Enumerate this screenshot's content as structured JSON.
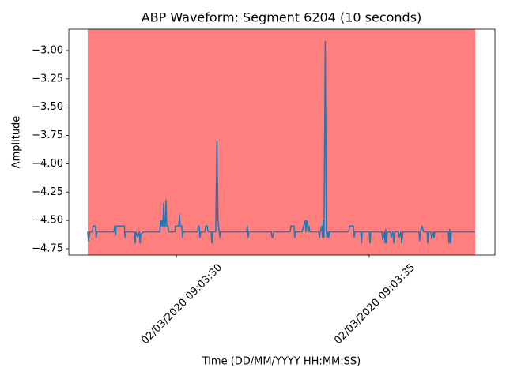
{
  "chart_data": {
    "type": "line",
    "title": "ABP Waveform: Segment 6204 (10 seconds)",
    "x_label": "Time (DD/MM/YYYY HH:MM:SS)",
    "y_label": "Amplitude",
    "color": "#1f77b4",
    "span": {
      "x": [
        "2020-03-02T09:03:27.70",
        "2020-03-02T09:03:37.75"
      ],
      "color": "#ff0000",
      "opacity": 0.5
    },
    "xlim": [
      "2020-03-02T09:03:27.21",
      "2020-03-02T09:03:38.26"
    ],
    "xticks": [
      {
        "value": "2020-03-02T09:03:30",
        "label": "02/03/2020 09:03:30"
      },
      {
        "value": "2020-03-02T09:03:35",
        "label": "02/03/2020 09:03:35"
      }
    ],
    "ylim": [
      -4.806,
      -2.812
    ],
    "yticks": [
      {
        "value": -4.75,
        "label": "−4.75"
      },
      {
        "value": -4.5,
        "label": "−4.50"
      },
      {
        "value": -4.25,
        "label": "−4.25"
      },
      {
        "value": -4,
        "label": "−4.00"
      },
      {
        "value": -3.75,
        "label": "−3.75"
      },
      {
        "value": -3.5,
        "label": "−3.50"
      },
      {
        "value": -3.25,
        "label": "−3.25"
      },
      {
        "value": -3,
        "label": "−3.00"
      }
    ],
    "x": [
      "2020-03-02T09:03:27.70",
      "2020-03-02T09:03:27.72",
      "2020-03-02T09:03:27.76",
      "2020-03-02T09:03:27.82",
      "2020-03-02T09:03:27.84",
      "2020-03-02T09:03:27.90",
      "2020-03-02T09:03:27.92",
      "2020-03-02T09:03:27.94",
      "2020-03-02T09:03:28.38",
      "2020-03-02T09:03:28.40",
      "2020-03-02T09:03:28.42",
      "2020-03-02T09:03:28.44",
      "2020-03-02T09:03:28.65",
      "2020-03-02T09:03:28.67",
      "2020-03-02T09:03:28.69",
      "2020-03-02T09:03:28.91",
      "2020-03-02T09:03:28.93",
      "2020-03-02T09:03:28.95",
      "2020-03-02T09:03:29.00",
      "2020-03-02T09:03:29.04",
      "2020-03-02T09:03:29.06",
      "2020-03-02T09:03:29.08",
      "2020-03-02T09:03:29.16",
      "2020-03-02T09:03:29.57",
      "2020-03-02T09:03:29.59",
      "2020-03-02T09:03:29.61",
      "2020-03-02T09:03:29.63",
      "2020-03-02T09:03:29.65",
      "2020-03-02T09:03:29.67",
      "2020-03-02T09:03:29.69",
      "2020-03-02T09:03:29.71",
      "2020-03-02T09:03:29.73",
      "2020-03-02T09:03:29.75",
      "2020-03-02T09:03:29.78",
      "2020-03-02T09:03:29.80",
      "2020-03-02T09:03:29.96",
      "2020-03-02T09:03:29.98",
      "2020-03-02T09:03:30.06",
      "2020-03-02T09:03:30.08",
      "2020-03-02T09:03:30.10",
      "2020-03-02T09:03:30.14",
      "2020-03-02T09:03:30.16",
      "2020-03-02T09:03:30.18",
      "2020-03-02T09:03:30.55",
      "2020-03-02T09:03:30.57",
      "2020-03-02T09:03:30.59",
      "2020-03-02T09:03:30.61",
      "2020-03-02T09:03:30.63",
      "2020-03-02T09:03:30.74",
      "2020-03-02T09:03:30.76",
      "2020-03-02T09:03:30.80",
      "2020-03-02T09:03:30.82",
      "2020-03-02T09:03:30.90",
      "2020-03-02T09:03:30.92",
      "2020-03-02T09:03:30.94",
      "2020-03-02T09:03:31.02",
      "2020-03-02T09:03:31.05",
      "2020-03-02T09:03:31.08",
      "2020-03-02T09:03:31.11",
      "2020-03-02T09:03:31.13",
      "2020-03-02T09:03:31.15",
      "2020-03-02T09:03:31.82",
      "2020-03-02T09:03:31.84",
      "2020-03-02T09:03:31.86",
      "2020-03-02T09:03:31.88",
      "2020-03-02T09:03:32.46",
      "2020-03-02T09:03:32.48",
      "2020-03-02T09:03:32.50",
      "2020-03-02T09:03:32.52",
      "2020-03-02T09:03:32.95",
      "2020-03-02T09:03:32.97",
      "2020-03-02T09:03:33.05",
      "2020-03-02T09:03:33.07",
      "2020-03-02T09:03:33.09",
      "2020-03-02T09:03:33.26",
      "2020-03-02T09:03:33.30",
      "2020-03-02T09:03:33.34",
      "2020-03-02T09:03:33.36",
      "2020-03-02T09:03:33.38",
      "2020-03-02T09:03:33.40",
      "2020-03-02T09:03:33.42",
      "2020-03-02T09:03:33.44",
      "2020-03-02T09:03:33.46",
      "2020-03-02T09:03:33.69",
      "2020-03-02T09:03:33.71",
      "2020-03-02T09:03:33.73",
      "2020-03-02T09:03:33.77",
      "2020-03-02T09:03:33.79",
      "2020-03-02T09:03:33.81",
      "2020-03-02T09:03:33.83",
      "2020-03-02T09:03:33.86",
      "2020-03-02T09:03:33.89",
      "2020-03-02T09:03:33.91",
      "2020-03-02T09:03:33.93",
      "2020-03-02T09:03:33.95",
      "2020-03-02T09:03:33.97",
      "2020-03-02T09:03:34.47",
      "2020-03-02T09:03:34.49",
      "2020-03-02T09:03:34.59",
      "2020-03-02T09:03:34.61",
      "2020-03-02T09:03:34.63",
      "2020-03-02T09:03:34.78",
      "2020-03-02T09:03:34.80",
      "2020-03-02T09:03:34.82",
      "2020-03-02T09:03:35.00",
      "2020-03-02T09:03:35.02",
      "2020-03-02T09:03:35.04",
      "2020-03-02T09:03:35.33",
      "2020-03-02T09:03:35.35",
      "2020-03-02T09:03:35.39",
      "2020-03-02T09:03:35.41",
      "2020-03-02T09:03:35.43",
      "2020-03-02T09:03:35.45",
      "2020-03-02T09:03:35.47",
      "2020-03-02T09:03:35.55",
      "2020-03-02T09:03:35.57",
      "2020-03-02T09:03:35.61",
      "2020-03-02T09:03:35.64",
      "2020-03-02T09:03:35.66",
      "2020-03-02T09:03:35.76",
      "2020-03-02T09:03:35.78",
      "2020-03-02T09:03:35.82",
      "2020-03-02T09:03:35.84",
      "2020-03-02T09:03:35.88",
      "2020-03-02T09:03:36.29",
      "2020-03-02T09:03:36.31",
      "2020-03-02T09:03:36.33",
      "2020-03-02T09:03:36.37",
      "2020-03-02T09:03:36.41",
      "2020-03-02T09:03:36.50",
      "2020-03-02T09:03:36.52",
      "2020-03-02T09:03:36.54",
      "2020-03-02T09:03:36.60",
      "2020-03-02T09:03:36.62",
      "2020-03-02T09:03:36.66",
      "2020-03-02T09:03:36.68",
      "2020-03-02T09:03:36.70",
      "2020-03-02T09:03:37.05",
      "2020-03-02T09:03:37.07",
      "2020-03-02T09:03:37.09",
      "2020-03-02T09:03:37.11",
      "2020-03-02T09:03:37.13",
      "2020-03-02T09:03:37.75"
    ],
    "values": [
      -4.6,
      -4.68,
      -4.6,
      -4.6,
      -4.55,
      -4.55,
      -4.65,
      -4.6,
      -4.6,
      -4.55,
      -4.63,
      -4.55,
      -4.55,
      -4.65,
      -4.6,
      -4.6,
      -4.7,
      -4.6,
      -4.65,
      -4.6,
      -4.7,
      -4.62,
      -4.6,
      -4.6,
      -4.5,
      -4.55,
      -4.5,
      -4.55,
      -4.35,
      -4.55,
      -4.55,
      -4.32,
      -4.55,
      -4.55,
      -4.6,
      -4.6,
      -4.55,
      -4.55,
      -4.45,
      -4.55,
      -4.55,
      -4.65,
      -4.6,
      -4.6,
      -4.55,
      -4.55,
      -4.65,
      -4.6,
      -4.6,
      -4.55,
      -4.55,
      -4.6,
      -4.6,
      -4.7,
      -4.6,
      -4.6,
      -3.8,
      -4.5,
      -4.6,
      -4.65,
      -4.6,
      -4.6,
      -4.55,
      -4.65,
      -4.6,
      -4.6,
      -4.65,
      -4.65,
      -4.6,
      -4.6,
      -4.55,
      -4.55,
      -4.65,
      -4.6,
      -4.6,
      -4.55,
      -4.5,
      -4.6,
      -4.5,
      -4.55,
      -4.6,
      -4.55,
      -4.6,
      -4.6,
      -4.65,
      -4.6,
      -4.55,
      -4.65,
      -4.5,
      -4.65,
      -2.92,
      -4.6,
      -4.65,
      -4.6,
      -4.65,
      -4.6,
      -4.6,
      -4.55,
      -4.55,
      -4.65,
      -4.6,
      -4.6,
      -4.7,
      -4.6,
      -4.6,
      -4.7,
      -4.6,
      -4.6,
      -4.67,
      -4.6,
      -4.7,
      -4.58,
      -4.7,
      -4.6,
      -4.6,
      -4.65,
      -4.6,
      -4.7,
      -4.6,
      -4.6,
      -4.65,
      -4.6,
      -4.7,
      -4.6,
      -4.6,
      -4.68,
      -4.6,
      -4.55,
      -4.6,
      -4.6,
      -4.7,
      -4.6,
      -4.6,
      -4.66,
      -4.6,
      -4.65,
      -4.6,
      -4.6,
      -4.7,
      -4.58,
      -4.7,
      -4.6,
      -4.6
    ]
  }
}
